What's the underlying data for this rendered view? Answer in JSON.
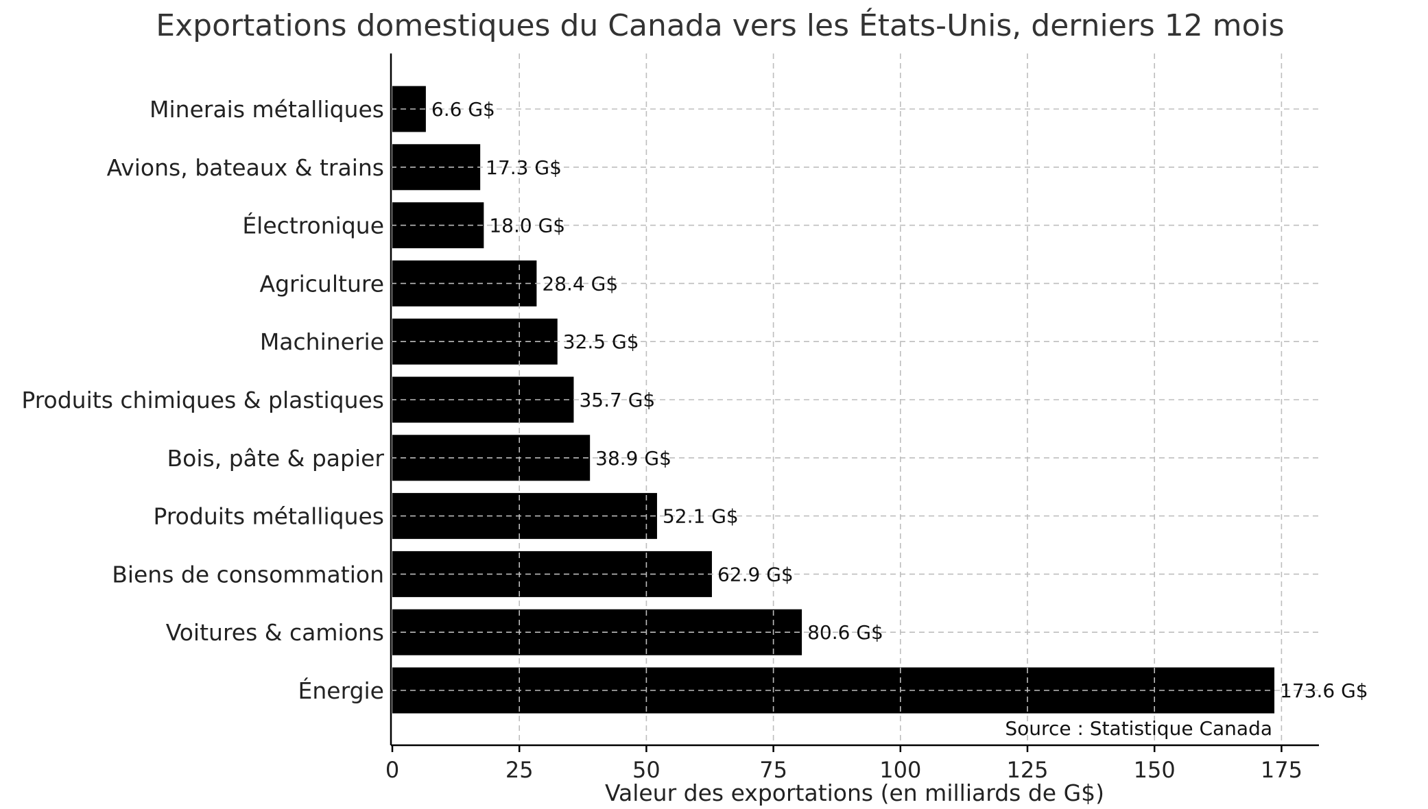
{
  "chart_data": {
    "type": "bar",
    "orientation": "horizontal",
    "title": "Exportations domestiques du Canada vers les États-Unis, derniers 12 mois",
    "xlabel": "Valeur des exportations (en milliards de G$)",
    "ylabel": "",
    "categories": [
      "Minerais métalliques",
      "Avions, bateaux & trains",
      "Électronique",
      "Agriculture",
      "Machinerie",
      "Produits chimiques & plastiques",
      "Bois, pâte & papier",
      "Produits métalliques",
      "Biens de consommation",
      "Voitures & camions",
      "Énergie"
    ],
    "values": [
      6.6,
      17.3,
      18.0,
      28.4,
      32.5,
      35.7,
      38.9,
      52.1,
      62.9,
      80.6,
      173.6
    ],
    "data_labels": [
      "6.6 G$",
      "17.3 G$",
      "18.0 G$",
      "28.4 G$",
      "32.5 G$",
      "35.7 G$",
      "38.9 G$",
      "52.1 G$",
      "62.9 G$",
      "80.6 G$",
      "173.6 G$"
    ],
    "xlim": [
      0,
      182
    ],
    "xticks": [
      0,
      25,
      50,
      75,
      100,
      125,
      150,
      175
    ],
    "xtick_labels": [
      "0",
      "25",
      "50",
      "75",
      "100",
      "125",
      "150",
      "175"
    ],
    "grid": true,
    "bar_color": "#000000",
    "source": "Source : Statistique Canada"
  }
}
